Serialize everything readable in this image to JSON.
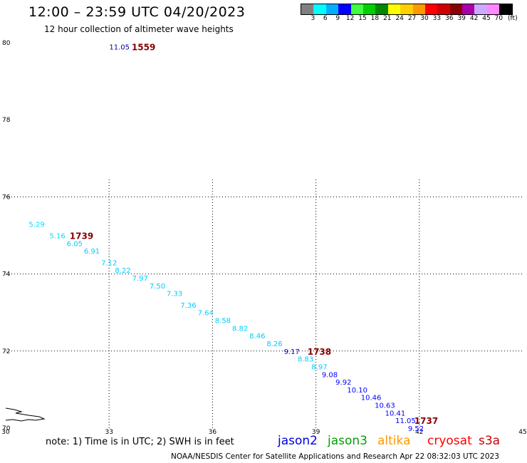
{
  "header": {
    "title": "12:00 – 23:59 UTC 04/20/2023",
    "subtitle": "12 hour collection of altimeter wave heights"
  },
  "colorbar": {
    "colors": [
      "#808080",
      "#00ffff",
      "#00b0ff",
      "#0000ff",
      "#40ff40",
      "#00d000",
      "#008800",
      "#ffff00",
      "#ffd000",
      "#ff9900",
      "#ff0000",
      "#d00000",
      "#880000",
      "#aa00aa",
      "#ccaaff",
      "#ff88ff",
      "#000000"
    ],
    "labels": [
      "3",
      "6",
      "9",
      "12",
      "15",
      "18",
      "21",
      "24",
      "27",
      "30",
      "33",
      "36",
      "39",
      "42",
      "45",
      "70",
      "(ft)"
    ]
  },
  "chart_data": {
    "type": "scatter",
    "title": "12:00 – 23:59 UTC 04/20/2023",
    "subtitle": "12 hour collection of altimeter wave heights",
    "xlim": [
      30,
      45
    ],
    "ylim": [
      70,
      80
    ],
    "x_ticks": [
      "30",
      "33",
      "36",
      "39",
      "42",
      "45"
    ],
    "y_ticks": [
      "70",
      "72",
      "74",
      "76",
      "78",
      "80"
    ],
    "grid": "dotted",
    "points": [
      {
        "x": 30.9,
        "y": 75.3,
        "value": "5.29",
        "color": "#00e0ff"
      },
      {
        "x": 31.5,
        "y": 75.0,
        "value": "5.16",
        "color": "#00e0ff"
      },
      {
        "x": 32.0,
        "y": 74.8,
        "value": "6.05",
        "color": "#00ccff"
      },
      {
        "x": 32.5,
        "y": 74.6,
        "value": "6.91",
        "color": "#00ccff"
      },
      {
        "x": 33.0,
        "y": 74.3,
        "value": "7.12",
        "color": "#00ccff"
      },
      {
        "x": 33.4,
        "y": 74.1,
        "value": "8.22",
        "color": "#00ccff"
      },
      {
        "x": 33.9,
        "y": 73.9,
        "value": "7.97",
        "color": "#00ccff"
      },
      {
        "x": 34.4,
        "y": 73.7,
        "value": "7.50",
        "color": "#00ccff"
      },
      {
        "x": 34.9,
        "y": 73.5,
        "value": "7.33",
        "color": "#00ccff"
      },
      {
        "x": 35.3,
        "y": 73.2,
        "value": "7.36",
        "color": "#00ccff"
      },
      {
        "x": 35.8,
        "y": 73.0,
        "value": "7.64",
        "color": "#00ccff"
      },
      {
        "x": 36.3,
        "y": 72.8,
        "value": "8.58",
        "color": "#00ccff"
      },
      {
        "x": 36.8,
        "y": 72.6,
        "value": "8.82",
        "color": "#00ccff"
      },
      {
        "x": 37.3,
        "y": 72.4,
        "value": "8.46",
        "color": "#00ccff"
      },
      {
        "x": 37.8,
        "y": 72.2,
        "value": "8.26",
        "color": "#00ccff"
      },
      {
        "x": 38.3,
        "y": 72.0,
        "value": "9.17",
        "color": "#0000ff"
      },
      {
        "x": 38.7,
        "y": 71.8,
        "value": "8.83",
        "color": "#00ccff"
      },
      {
        "x": 39.1,
        "y": 71.6,
        "value": "8.97",
        "color": "#00ccff"
      },
      {
        "x": 39.4,
        "y": 71.4,
        "value": "9.08",
        "color": "#0000ff"
      },
      {
        "x": 39.8,
        "y": 71.2,
        "value": "9.92",
        "color": "#0000ff"
      },
      {
        "x": 40.2,
        "y": 71.0,
        "value": "10.10",
        "color": "#0000ff"
      },
      {
        "x": 40.6,
        "y": 70.8,
        "value": "10.46",
        "color": "#0000ff"
      },
      {
        "x": 41.0,
        "y": 70.6,
        "value": "10.63",
        "color": "#0000ff"
      },
      {
        "x": 41.3,
        "y": 70.4,
        "value": "10.41",
        "color": "#0000ff"
      },
      {
        "x": 41.6,
        "y": 70.2,
        "value": "11.05",
        "color": "#0000ff"
      },
      {
        "x": 41.9,
        "y": 70.0,
        "value": "9.52",
        "color": "#0000ff"
      },
      {
        "x": 33.3,
        "y": 79.9,
        "value": "11.05",
        "color": "#0000aa"
      }
    ],
    "time_labels": [
      {
        "x": 34.0,
        "y": 79.9,
        "text": "1559",
        "color": "#880000"
      },
      {
        "x": 32.2,
        "y": 75.0,
        "text": "1739",
        "color": "#880000"
      },
      {
        "x": 39.1,
        "y": 72.0,
        "text": "1738",
        "color": "#880000"
      },
      {
        "x": 42.2,
        "y": 70.2,
        "text": "1737",
        "color": "#880000"
      }
    ]
  },
  "footer": {
    "note": "note:  1) Time is in UTC;  2) SWH is in feet",
    "legend": [
      {
        "name": "jason2",
        "color": "#0000dd"
      },
      {
        "name": "jason3",
        "color": "#00a000"
      },
      {
        "name": "altika",
        "color": "#ff9900"
      },
      {
        "name": "cryosat",
        "color": "#ff0000"
      },
      {
        "name": "s3a",
        "color": "#cc0000"
      }
    ],
    "credit": "NOAA/NESDIS Center for Satellite Applications and Research     Apr 22 08:32:03 UTC 2023"
  }
}
